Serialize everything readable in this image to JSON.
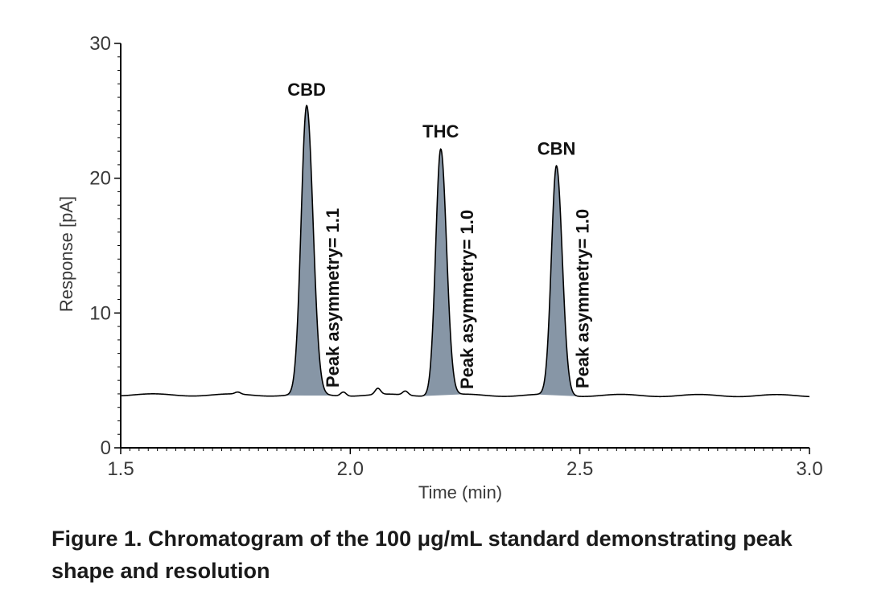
{
  "chart_data": {
    "type": "line",
    "title": "",
    "xlabel": "Time (min)",
    "ylabel": "Response [pA]",
    "xlim": [
      1.5,
      3.0
    ],
    "ylim": [
      0,
      30
    ],
    "x_ticks": [
      "1.5",
      "2.0",
      "2.5",
      "3.0"
    ],
    "x_tick_values": [
      1.5,
      2.0,
      2.5,
      3.0
    ],
    "y_ticks": [
      "0",
      "10",
      "20",
      "30"
    ],
    "y_tick_values": [
      0,
      10,
      20,
      30
    ],
    "baseline": 3.9,
    "peaks": [
      {
        "name": "CBD",
        "time": 1.905,
        "height": 25.3,
        "width": 0.012,
        "asymmetry": "Peak asymmetry= 1.1"
      },
      {
        "name": "THC",
        "time": 2.197,
        "height": 22.2,
        "width": 0.011,
        "asymmetry": "Peak asymmetry= 1.0"
      },
      {
        "name": "CBN",
        "time": 2.449,
        "height": 20.9,
        "width": 0.011,
        "asymmetry": "Peak asymmetry= 1.0"
      }
    ],
    "minor_peaks": [
      {
        "time": 1.755,
        "height": 0.15
      },
      {
        "time": 1.985,
        "height": 0.3
      },
      {
        "time": 2.06,
        "height": 0.45
      },
      {
        "time": 2.12,
        "height": 0.3
      }
    ],
    "series": [
      {
        "name": "Chromatogram",
        "color": "#000000",
        "fill": "#8796a6"
      }
    ]
  },
  "caption": "Figure 1. Chromatogram of the 100 μg/mL standard demonstrating peak shape and resolution"
}
